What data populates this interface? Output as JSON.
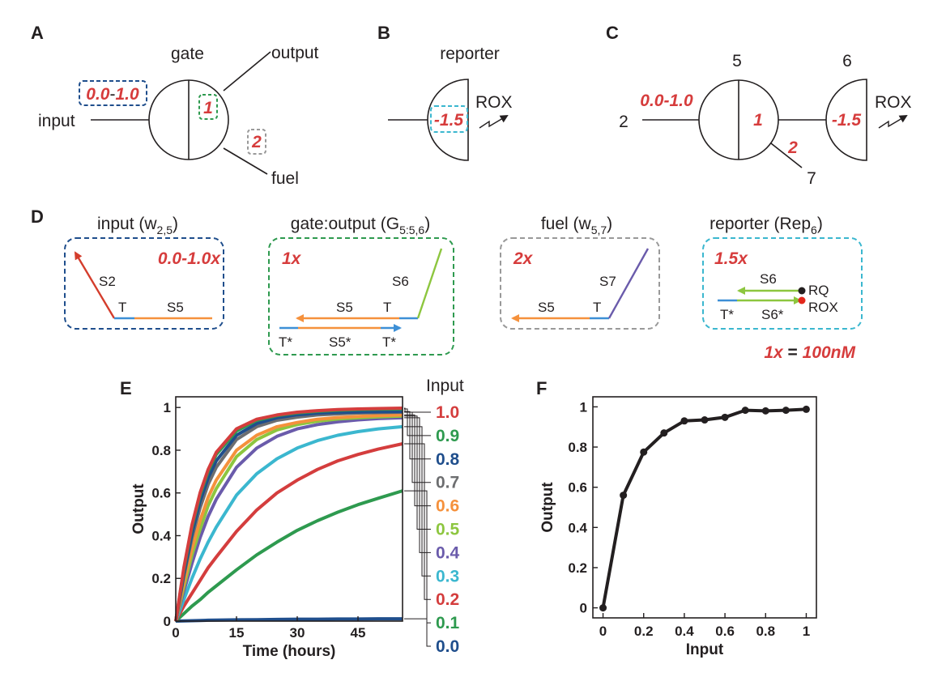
{
  "colors": {
    "text": "#231f20",
    "accent_red": "#d63c3c",
    "input_box": "#1f4e8c",
    "gate_box": "#2e9a4f",
    "fuel_box": "#999999",
    "reporter_box": "#3bb7cf",
    "toehold": "#3d8fd6",
    "s5": "#f5913c",
    "s2": "#d43d2c",
    "s6": "#8dc63f",
    "s7": "#6a5bab",
    "dot_black": "#231f20",
    "dot_red": "#e3281c"
  },
  "panels": {
    "a": {
      "letter": "A",
      "gate_label": "gate",
      "output_label": "output",
      "input_label": "input",
      "fuel_label": "fuel",
      "input_range_a": "0.0",
      "input_range_sep": "-",
      "input_range_b": "1.0",
      "gate_weight": "1",
      "fuel_weight": "2"
    },
    "b": {
      "letter": "B",
      "reporter_label": "reporter",
      "rox_label": "ROX",
      "threshold": "-1.5"
    },
    "c": {
      "letter": "C",
      "node_input": "2",
      "node_gate": "5",
      "node_reporter": "6",
      "node_fuel": "7",
      "input_range_a": "0.0",
      "input_range_sep": "-",
      "input_range_b": "1.0",
      "gate_weight": "1",
      "fuel_weight": "2",
      "threshold": "-1.5",
      "rox_label": "ROX"
    },
    "d": {
      "letter": "D",
      "input_title": "input (w",
      "input_sub": "2,5",
      "input_title_end": ")",
      "input_conc_a": "0.0",
      "input_conc_sep": "-",
      "input_conc_b": "1.0x",
      "gate_title": "gate:output (G",
      "gate_sub": "5:5,6",
      "gate_title_end": ")",
      "gate_conc": "1x",
      "fuel_title": "fuel (w",
      "fuel_sub": "5,7",
      "fuel_title_end": ")",
      "fuel_conc": "2x",
      "reporter_title": "reporter (Rep",
      "reporter_sub": "6",
      "reporter_title_end": ")",
      "reporter_conc": "1.5x",
      "strands": {
        "s2": "S2",
        "t": "T",
        "s5": "S5",
        "s6": "S6",
        "s7": "S7",
        "t_star": "T*",
        "s5_star": "S5*",
        "s6_star": "S6*",
        "rq": "RQ",
        "rox": "ROX"
      },
      "note_a": "1x",
      "note_sep": " = ",
      "note_b": "100nM"
    },
    "e": {
      "letter": "E",
      "legend_title": "Input"
    },
    "f": {
      "letter": "F"
    }
  },
  "chart_data": [
    {
      "type": "line",
      "panel": "E",
      "xlabel": "Time (hours)",
      "ylabel": "Output",
      "xlim": [
        0,
        56
      ],
      "ylim": [
        0,
        1.05
      ],
      "xticks": [
        "0",
        "15",
        "30",
        "45"
      ],
      "yticks": [
        "0",
        "0.2",
        "0.4",
        "0.6",
        "0.8",
        "1"
      ],
      "x": [
        0,
        2,
        4,
        6,
        8,
        10,
        15,
        20,
        25,
        30,
        35,
        40,
        45,
        50,
        56
      ],
      "legend_title": "Input",
      "series": [
        {
          "name": "1.0",
          "color": "#d43d3d",
          "values": [
            0,
            0.25,
            0.45,
            0.6,
            0.71,
            0.79,
            0.9,
            0.945,
            0.965,
            0.978,
            0.985,
            0.99,
            0.993,
            0.995,
            0.997
          ]
        },
        {
          "name": "0.9",
          "color": "#2e9a4f",
          "values": [
            0,
            0.24,
            0.44,
            0.59,
            0.7,
            0.78,
            0.89,
            0.94,
            0.962,
            0.975,
            0.982,
            0.987,
            0.99,
            0.992,
            0.993
          ]
        },
        {
          "name": "0.8",
          "color": "#1f4e8c",
          "values": [
            0,
            0.22,
            0.41,
            0.56,
            0.67,
            0.75,
            0.87,
            0.925,
            0.952,
            0.966,
            0.973,
            0.977,
            0.979,
            0.98,
            0.981
          ]
        },
        {
          "name": "0.7",
          "color": "#6d6e70",
          "values": [
            0,
            0.21,
            0.39,
            0.53,
            0.64,
            0.72,
            0.85,
            0.91,
            0.94,
            0.955,
            0.965,
            0.97,
            0.974,
            0.976,
            0.978
          ]
        },
        {
          "name": "0.6",
          "color": "#f5913c",
          "values": [
            0,
            0.18,
            0.34,
            0.47,
            0.58,
            0.66,
            0.8,
            0.87,
            0.91,
            0.93,
            0.945,
            0.953,
            0.958,
            0.962,
            0.965
          ]
        },
        {
          "name": "0.5",
          "color": "#8dc63f",
          "values": [
            0,
            0.16,
            0.31,
            0.43,
            0.54,
            0.62,
            0.77,
            0.85,
            0.895,
            0.92,
            0.936,
            0.946,
            0.952,
            0.956,
            0.96
          ]
        },
        {
          "name": "0.4",
          "color": "#6a5bab",
          "values": [
            0,
            0.14,
            0.27,
            0.39,
            0.49,
            0.57,
            0.72,
            0.81,
            0.865,
            0.9,
            0.92,
            0.933,
            0.942,
            0.948,
            0.952
          ]
        },
        {
          "name": "0.3",
          "color": "#3bb7cf",
          "values": [
            0,
            0.1,
            0.2,
            0.29,
            0.37,
            0.44,
            0.59,
            0.69,
            0.76,
            0.81,
            0.845,
            0.87,
            0.887,
            0.9,
            0.91
          ]
        },
        {
          "name": "0.2",
          "color": "#d43d3d",
          "values": [
            0,
            0.07,
            0.13,
            0.19,
            0.25,
            0.3,
            0.42,
            0.52,
            0.6,
            0.66,
            0.71,
            0.75,
            0.78,
            0.805,
            0.83
          ]
        },
        {
          "name": "0.1",
          "color": "#2e9a4f",
          "values": [
            0,
            0.035,
            0.07,
            0.1,
            0.135,
            0.165,
            0.24,
            0.31,
            0.37,
            0.425,
            0.47,
            0.51,
            0.545,
            0.575,
            0.61
          ]
        },
        {
          "name": "0.0",
          "color": "#1f4e8c",
          "values": [
            0,
            0.001,
            0.002,
            0.003,
            0.004,
            0.005,
            0.006,
            0.007,
            0.008,
            0.009,
            0.009,
            0.01,
            0.01,
            0.011,
            0.011
          ]
        }
      ]
    },
    {
      "type": "line",
      "panel": "F",
      "xlabel": "Input",
      "ylabel": "Output",
      "xlim": [
        -0.05,
        1.05
      ],
      "ylim": [
        -0.05,
        1.05
      ],
      "xticks": [
        "0",
        "0.2",
        "0.4",
        "0.6",
        "0.8",
        "1"
      ],
      "yticks": [
        "0",
        "0.2",
        "0.4",
        "0.6",
        "0.8",
        "1"
      ],
      "x": [
        0,
        0.1,
        0.2,
        0.3,
        0.4,
        0.5,
        0.6,
        0.7,
        0.8,
        0.9,
        1.0
      ],
      "series": [
        {
          "color": "#231f20",
          "values": [
            0.0,
            0.56,
            0.775,
            0.87,
            0.93,
            0.935,
            0.948,
            0.983,
            0.98,
            0.983,
            0.988
          ]
        }
      ]
    }
  ]
}
